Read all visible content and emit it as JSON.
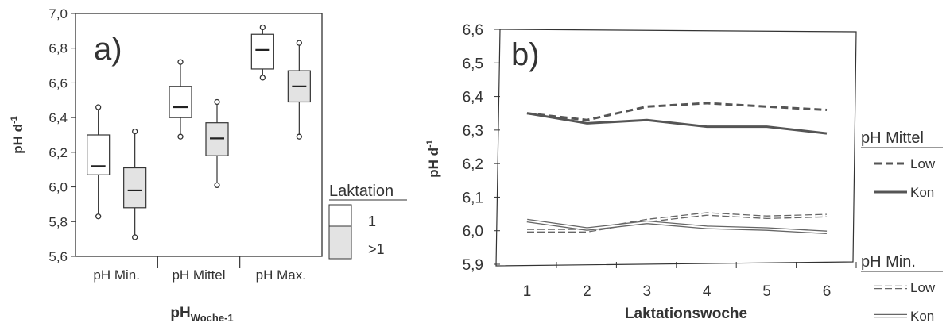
{
  "chart_data": [
    {
      "type": "box",
      "panel_label": "a)",
      "ylabel": "pH d",
      "ylabel_sup": "-1",
      "xlabel": "pH",
      "xlabel_sub": "Woche-1",
      "ylim": [
        5.6,
        7.0
      ],
      "yticks": [
        "5,6",
        "5,8",
        "6,0",
        "6,2",
        "6,4",
        "6,6",
        "6,8",
        "7,0"
      ],
      "ytick_values": [
        5.6,
        5.8,
        6.0,
        6.2,
        6.4,
        6.6,
        6.8,
        7.0
      ],
      "categories": [
        "pH Min.",
        "pH Mittel",
        "pH Max."
      ],
      "legend_title": "Laktation",
      "series": [
        {
          "name": "1",
          "color": "#ffffff",
          "boxes": [
            {
              "min": 5.83,
              "q1": 6.07,
              "median": 6.12,
              "q3": 6.3,
              "max": 6.46
            },
            {
              "min": 6.29,
              "q1": 6.4,
              "median": 6.46,
              "q3": 6.58,
              "max": 6.72
            },
            {
              "min": 6.63,
              "q1": 6.68,
              "median": 6.79,
              "q3": 6.88,
              "max": 6.92
            }
          ]
        },
        {
          "name": ">1",
          "color": "#e3e3e3",
          "boxes": [
            {
              "min": 5.71,
              "q1": 5.88,
              "median": 5.98,
              "q3": 6.11,
              "max": 6.32
            },
            {
              "min": 6.01,
              "q1": 6.18,
              "median": 6.28,
              "q3": 6.37,
              "max": 6.49
            },
            {
              "min": 6.29,
              "q1": 6.49,
              "median": 6.58,
              "q3": 6.67,
              "max": 6.83
            }
          ]
        }
      ]
    },
    {
      "type": "line",
      "panel_label": "b)",
      "ylabel": "pH d",
      "ylabel_sup": "-1",
      "xlabel": "Laktationswoche",
      "x": [
        1,
        2,
        3,
        4,
        5,
        6
      ],
      "xticks": [
        "1",
        "2",
        "3",
        "4",
        "5",
        "6"
      ],
      "ylim": [
        5.9,
        6.6
      ],
      "yticks": [
        "5,9",
        "6,0",
        "6,1",
        "6,2",
        "6,3",
        "6,4",
        "6,5",
        "6,6"
      ],
      "ytick_values": [
        5.9,
        6.0,
        6.1,
        6.2,
        6.3,
        6.4,
        6.5,
        6.6
      ],
      "legend_groups": [
        {
          "title": "pH Mittel",
          "items": [
            {
              "label": "Low",
              "style": "dashed-dark"
            },
            {
              "label": "Kon",
              "style": "solid-dark"
            }
          ]
        },
        {
          "title": "pH Min.",
          "items": [
            {
              "label": "Low",
              "style": "dashed-light"
            },
            {
              "label": "Kon",
              "style": "solid-light"
            }
          ]
        }
      ],
      "series": [
        {
          "group": "pH Mittel",
          "name": "Low",
          "style": "dashed-dark",
          "values": [
            6.35,
            6.33,
            6.37,
            6.38,
            6.37,
            6.36
          ]
        },
        {
          "group": "pH Mittel",
          "name": "Kon",
          "style": "solid-dark",
          "values": [
            6.35,
            6.32,
            6.33,
            6.31,
            6.31,
            6.29
          ]
        },
        {
          "group": "pH Min.",
          "name": "Low",
          "style": "dashed-light",
          "values": [
            6.0,
            6.0,
            6.03,
            6.05,
            6.04,
            6.045
          ]
        },
        {
          "group": "pH Min.",
          "name": "Kon",
          "style": "solid-light",
          "values": [
            6.03,
            6.005,
            6.025,
            6.01,
            6.005,
            5.995
          ]
        }
      ]
    }
  ]
}
